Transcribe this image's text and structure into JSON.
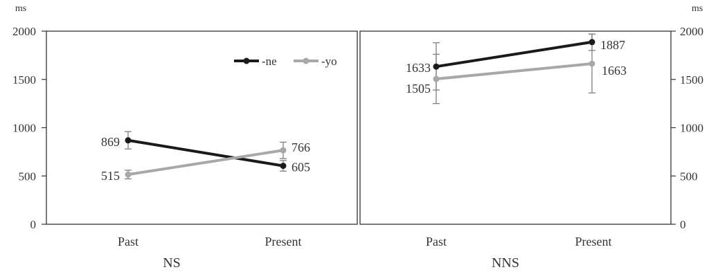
{
  "chart_data": {
    "type": "line",
    "y_unit": "ms",
    "ylim": [
      0,
      2000
    ],
    "yticks": [
      "0",
      "500",
      "1000",
      "1500",
      "2000"
    ],
    "categories": [
      "Past",
      "Present"
    ],
    "colors": {
      "-ne": "#1a1a1a",
      "-yo": "#a8a8a8",
      "error": "#808080"
    },
    "legend": {
      "placement": "top-right of left panel",
      "entries": [
        "-ne",
        "-yo"
      ]
    },
    "panels": [
      {
        "group": "NS",
        "series": [
          {
            "name": "-ne",
            "values": [
              869,
              605
            ],
            "labels": [
              "869",
              "605"
            ],
            "error": [
              [
                780,
                960
              ],
              [
                550,
                660
              ]
            ]
          },
          {
            "name": "-yo",
            "values": [
              515,
              766
            ],
            "labels": [
              "515",
              "766"
            ],
            "error": [
              [
                470,
                560
              ],
              [
                680,
                850
              ]
            ]
          }
        ]
      },
      {
        "group": "NNS",
        "series": [
          {
            "name": "-ne",
            "values": [
              1633,
              1887
            ],
            "labels": [
              "1633",
              "1887"
            ],
            "error": [
              [
                1390,
                1880
              ],
              [
                1800,
                1970
              ]
            ]
          },
          {
            "name": "-yo",
            "values": [
              1505,
              1663
            ],
            "labels": [
              "1505",
              "1663"
            ],
            "error": [
              [
                1250,
                1760
              ],
              [
                1360,
                1970
              ]
            ]
          }
        ]
      }
    ]
  }
}
